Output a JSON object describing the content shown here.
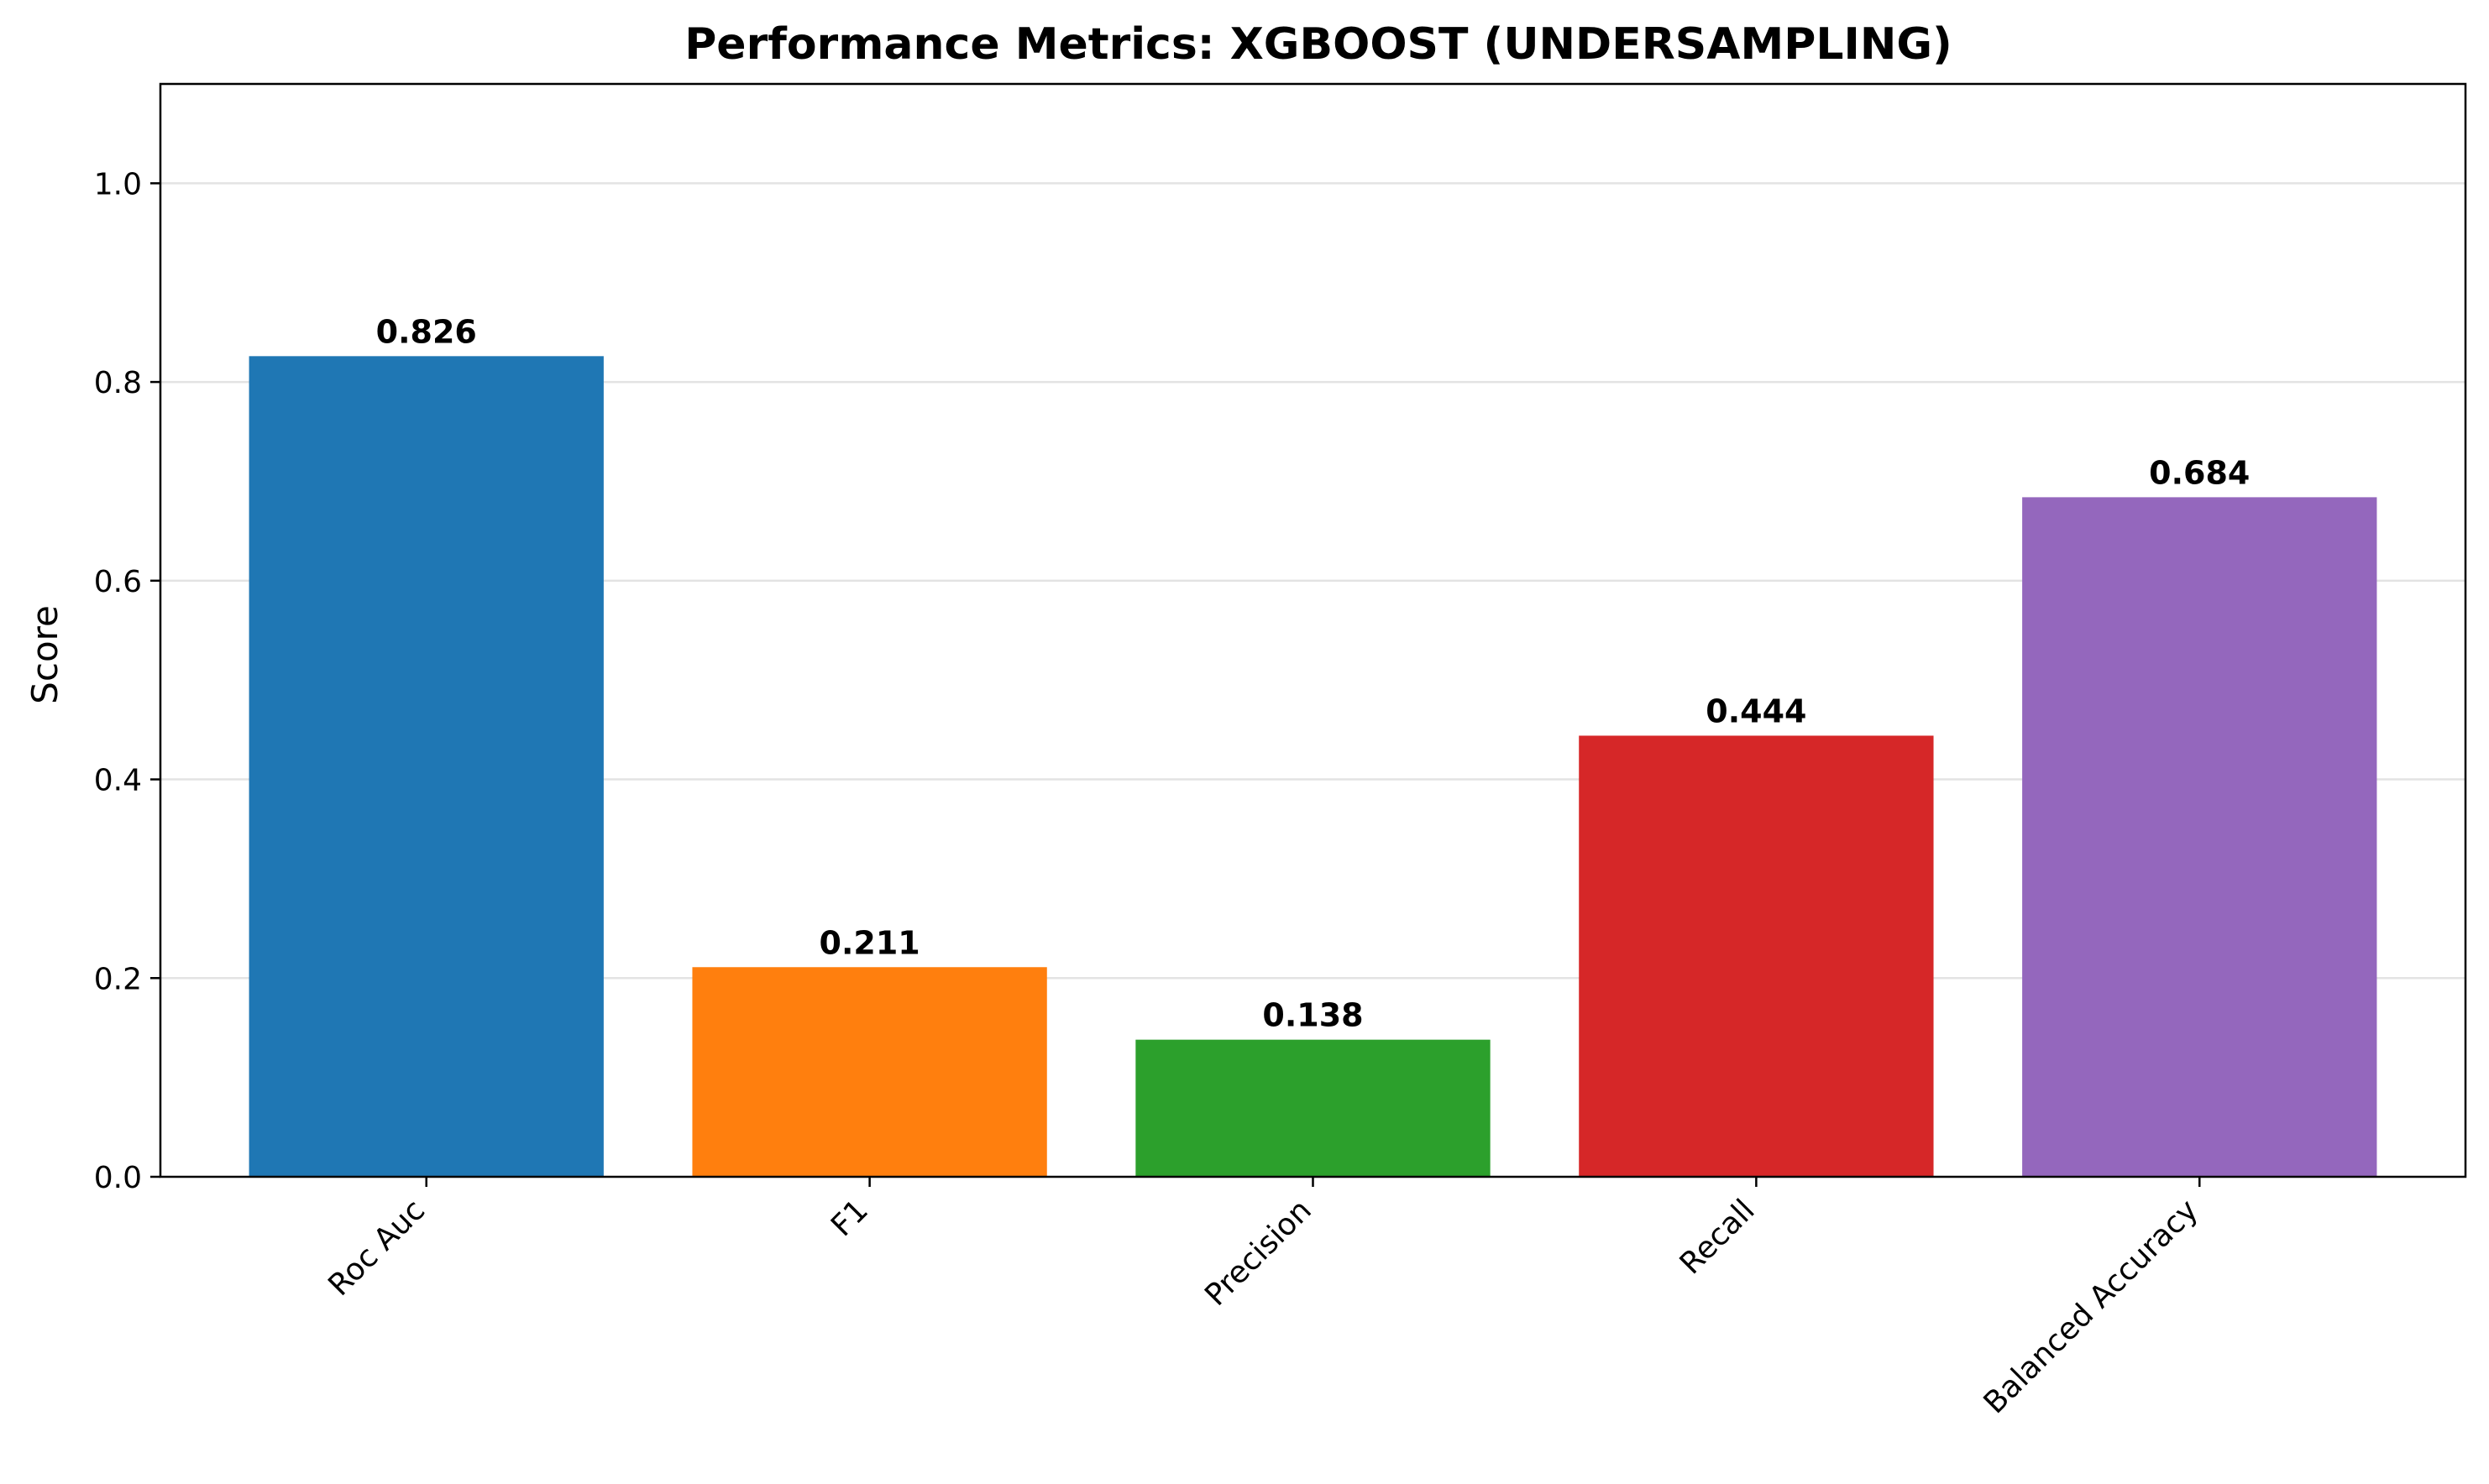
{
  "chart_data": {
    "type": "bar",
    "title": "Performance Metrics: XGBOOST (UNDERSAMPLING)",
    "xlabel": "",
    "ylabel": "Score",
    "categories": [
      "Roc Auc",
      "F1",
      "Precision",
      "Recall",
      "Balanced Accuracy"
    ],
    "values": [
      0.826,
      0.211,
      0.138,
      0.444,
      0.684
    ],
    "value_labels": [
      "0.826",
      "0.211",
      "0.138",
      "0.444",
      "0.684"
    ],
    "colors": [
      "#1f77b4",
      "#ff7f0e",
      "#2ca02c",
      "#d62728",
      "#9467bd"
    ],
    "ylim": [
      0,
      1.1
    ],
    "yticks": [
      0.0,
      0.2,
      0.4,
      0.6,
      0.8,
      1.0
    ],
    "ytick_labels": [
      "0.0",
      "0.2",
      "0.4",
      "0.6",
      "0.8",
      "1.0"
    ],
    "grid": "y-axis, light",
    "legend": "none",
    "xtick_rotation": 45
  }
}
